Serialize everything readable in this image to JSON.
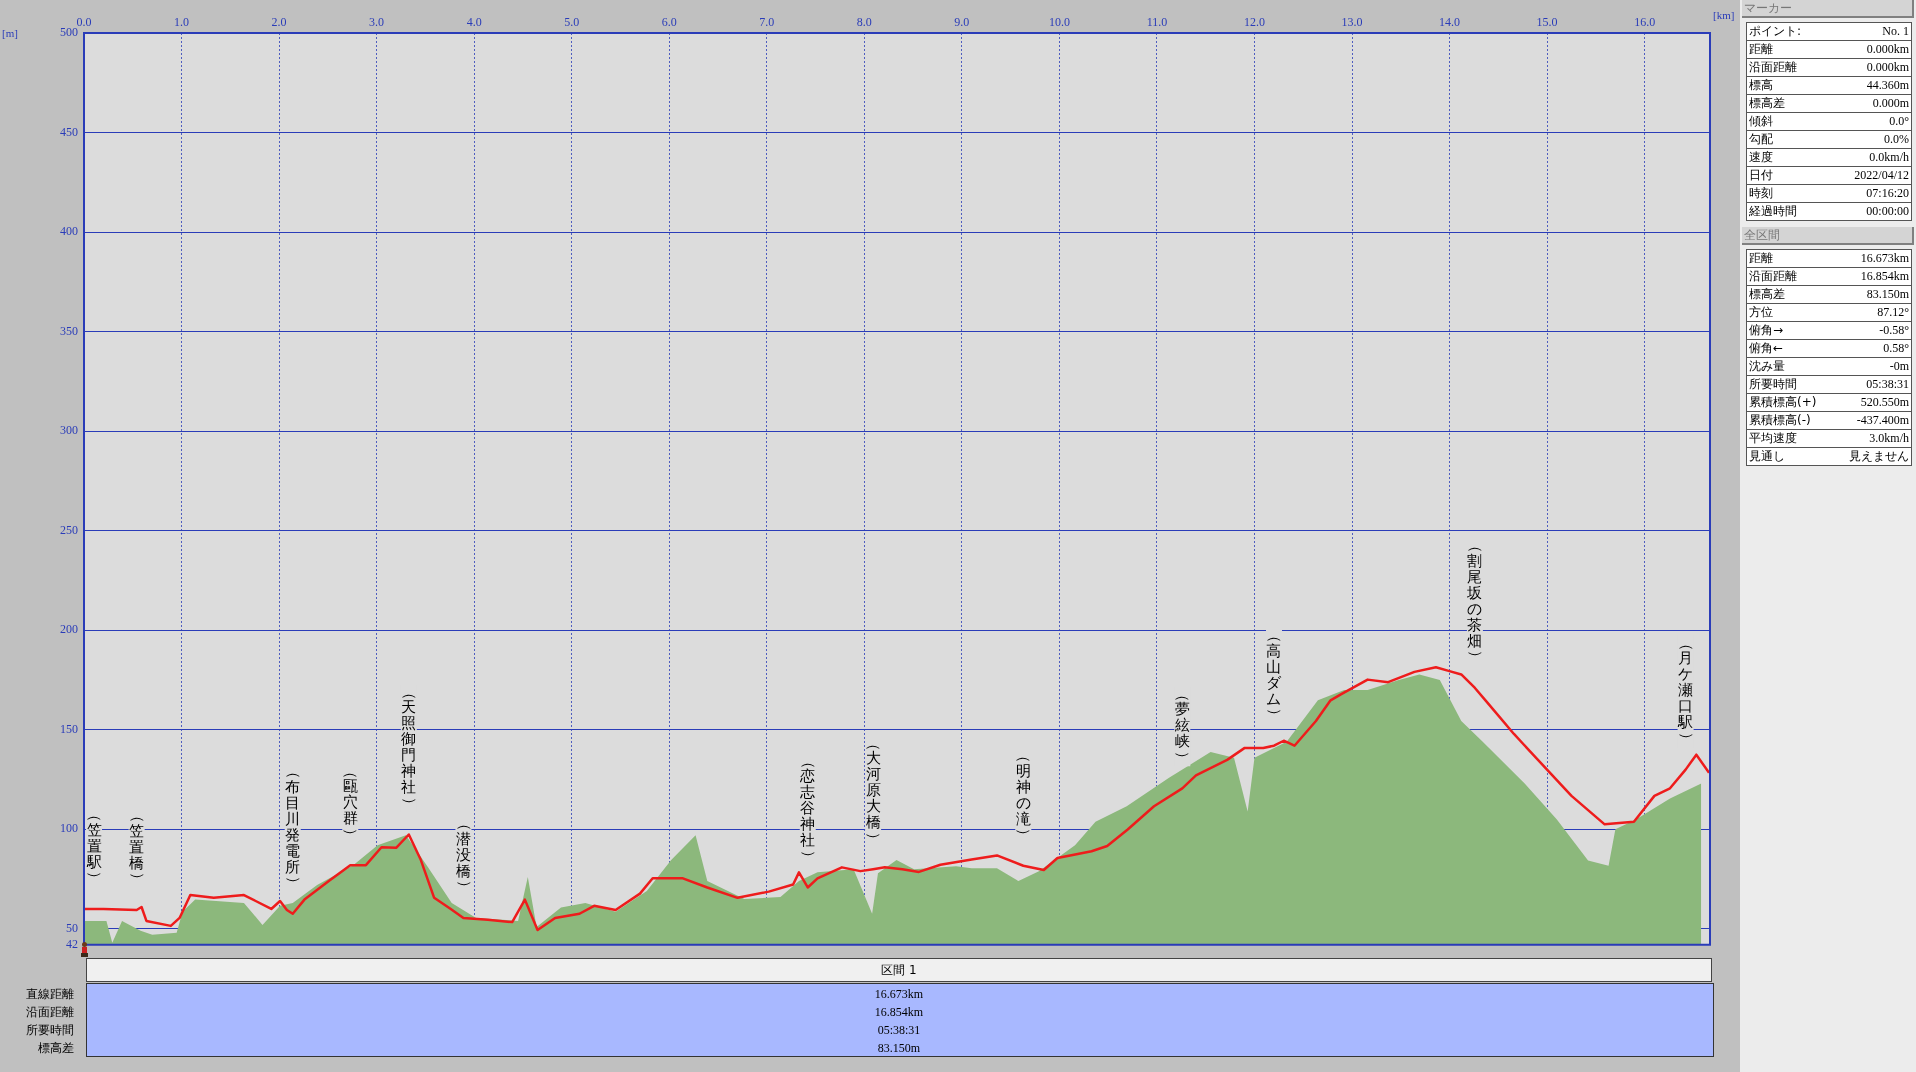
{
  "chart_data": [
    {
      "type": "line",
      "xlabel": "[km]",
      "ylabel": "[m]",
      "xlim": [
        0,
        16.67
      ],
      "xticks": [
        {
          "value": 0,
          "label": "0.0"
        },
        {
          "value": 1,
          "label": "1.0"
        },
        {
          "value": 2,
          "label": "2.0"
        },
        {
          "value": 3,
          "label": "3.0"
        },
        {
          "value": 4,
          "label": "4.0"
        },
        {
          "value": 5,
          "label": "5.0"
        },
        {
          "value": 6,
          "label": "6.0"
        },
        {
          "value": 7,
          "label": "7.0"
        },
        {
          "value": 8,
          "label": "8.0"
        },
        {
          "value": 9,
          "label": "9.0"
        },
        {
          "value": 10,
          "label": "10.0"
        },
        {
          "value": 11,
          "label": "11.0"
        },
        {
          "value": 12,
          "label": "12.0"
        },
        {
          "value": 13,
          "label": "13.0"
        },
        {
          "value": 14,
          "label": "14.0"
        },
        {
          "value": 15,
          "label": "15.0"
        },
        {
          "value": 16,
          "label": "16.0"
        }
      ],
      "ylim": [
        42,
        500
      ],
      "yticks": [
        42,
        50,
        100,
        150,
        200,
        250,
        300,
        350,
        400,
        450,
        500
      ],
      "grid": true,
      "marker": "none",
      "series": [
        {
          "type": "area",
          "color": "#8cb87c",
          "x": [
            0,
            0.23,
            0.29,
            0.39,
            0.58,
            0.7,
            0.95,
            1.01,
            1.14,
            1.64,
            1.83,
            2.01,
            2.14,
            2.39,
            2.76,
            3.01,
            3.3,
            3.52,
            3.77,
            4.02,
            4.45,
            4.55,
            4.64,
            4.89,
            5.14,
            5.45,
            5.77,
            6.02,
            6.27,
            6.39,
            6.77,
            7.14,
            7.33,
            7.52,
            7.89,
            8.08,
            8.14,
            8.33,
            8.51,
            8.94,
            9.1,
            9.36,
            9.58,
            9.79,
            10.16,
            10.37,
            10.69,
            11.12,
            11.55,
            11.79,
            11.93,
            12.0,
            12.33,
            12.65,
            12.92,
            13.16,
            13.48,
            13.69,
            13.9,
            14.12,
            14.34,
            14.77,
            15.1,
            15.42,
            15.63,
            15.7,
            15.91,
            16.26,
            16.58
          ],
          "values": [
            54,
            54,
            43,
            54,
            49,
            47,
            48,
            58.6,
            64.7,
            63,
            52,
            61.6,
            63,
            72,
            82,
            92,
            97,
            81.5,
            63,
            55.5,
            54,
            76,
            51,
            60.7,
            63,
            58.6,
            69,
            84.6,
            97,
            74,
            65,
            66,
            74,
            78.4,
            80,
            57.6,
            78,
            84.6,
            80,
            81.5,
            80.4,
            80.4,
            74,
            79,
            92,
            103.8,
            111.6,
            125.8,
            138.8,
            136,
            109,
            136,
            144,
            164.8,
            170,
            170,
            175,
            177.8,
            175,
            154.4,
            144,
            123,
            104.9,
            84.3,
            81.7,
            100,
            105,
            115.5,
            123
          ]
        },
        {
          "type": "line",
          "color": "#ee1c1c",
          "x": [
            0,
            0.2,
            0.54,
            0.59,
            0.64,
            0.89,
            0.98,
            1.09,
            1.33,
            1.64,
            1.76,
            1.92,
            2.01,
            2.08,
            2.14,
            2.26,
            2.51,
            2.73,
            2.89,
            3.05,
            3.2,
            3.33,
            3.45,
            3.59,
            3.76,
            3.89,
            4.14,
            4.39,
            4.52,
            4.65,
            4.83,
            5.08,
            5.23,
            5.45,
            5.7,
            5.83,
            6.14,
            6.39,
            6.7,
            7.02,
            7.27,
            7.33,
            7.42,
            7.52,
            7.77,
            7.96,
            8.09,
            8.21,
            8.39,
            8.56,
            8.78,
            9.1,
            9.36,
            9.63,
            9.84,
            9.98,
            10.33,
            10.49,
            10.7,
            10.97,
            11.26,
            11.4,
            11.72,
            11.9,
            12.09,
            12.2,
            12.3,
            12.41,
            12.63,
            12.78,
            12.89,
            13.16,
            13.37,
            13.64,
            13.86,
            13.99,
            14.12,
            14.26,
            14.39,
            14.66,
            14.98,
            15.25,
            15.59,
            15.89,
            16.1,
            16.26,
            16.42,
            16.53,
            16.66
          ],
          "values": [
            60,
            60,
            59.5,
            61,
            54,
            51.5,
            55.5,
            67,
            65.6,
            67,
            64,
            60,
            64,
            59.5,
            57.6,
            64.7,
            74,
            82,
            82,
            91,
            90.7,
            97.4,
            85,
            65.6,
            60,
            55.5,
            54.6,
            53.4,
            64.7,
            49.4,
            55.5,
            57.6,
            61.6,
            59.5,
            67.7,
            75.4,
            75.4,
            70.8,
            65.6,
            68.7,
            72.3,
            78.4,
            70.8,
            75.4,
            80.9,
            79,
            80,
            80.9,
            80,
            78.6,
            82.2,
            84.8,
            86.9,
            81.7,
            79.6,
            85.6,
            89,
            91.6,
            99.9,
            111.6,
            120.6,
            127.1,
            134.9,
            140.9,
            140.9,
            142,
            144.5,
            142,
            154.4,
            164.8,
            167.9,
            175.2,
            173.9,
            179.1,
            181.4,
            179.6,
            177.8,
            171,
            163.5,
            147.9,
            131,
            116.8,
            102.5,
            103.8,
            116.8,
            120.6,
            130,
            137.5,
            128.4
          ]
        }
      ],
      "annotations": [
        {
          "text": "（笠置駅）",
          "x": 0,
          "y": 60
        },
        {
          "text": "（笠置橋）",
          "x": 0.54,
          "y": 59.5
        },
        {
          "text": "（布目川発電所）",
          "x": 2.14,
          "y": 57.6
        },
        {
          "text": "（甌穴群）",
          "x": 2.73,
          "y": 82
        },
        {
          "text": "（天照御門神社）",
          "x": 3.33,
          "y": 97.4
        },
        {
          "text": "（潜没橋）",
          "x": 3.89,
          "y": 55.5
        },
        {
          "text": "（恋志谷神社）",
          "x": 7.42,
          "y": 70.8
        },
        {
          "text": "（大河原大橋）",
          "x": 8.09,
          "y": 80
        },
        {
          "text": "（明神の滝）",
          "x": 9.63,
          "y": 81.7
        },
        {
          "text": "（夢絃峡）",
          "x": 11.26,
          "y": 120.6
        },
        {
          "text": "（高山ダム）",
          "x": 12.2,
          "y": 142
        },
        {
          "text": "（割尾坂の茶畑）",
          "x": 14.26,
          "y": 171
        },
        {
          "text": "（月ケ瀬口駅）",
          "x": 16.42,
          "y": 130
        }
      ]
    },
    {
      "type": "other",
      "title": "マーカー",
      "annotations": [
        "ポイント:",
        "No. 1",
        "距離",
        "0.000km",
        "沿面距離",
        "0.000km",
        "標高",
        "44.360m",
        "標高差",
        "0.000m",
        "傾斜",
        "0.0°",
        "勾配",
        "0.0%",
        "速度",
        "0.0km/h",
        "日付",
        "2022/04/12",
        "時刻",
        "07:16:20",
        "経過時間",
        "00:00:00"
      ]
    },
    {
      "type": "other",
      "title": "全区間",
      "annotations": [
        "距離",
        "16.673km",
        "沿面距離",
        "16.854km",
        "標高差",
        "83.150m",
        "方位",
        "87.12°",
        "俯角→",
        "-0.58°",
        "俯角←",
        "0.58°",
        "沈み量",
        "-0m",
        "所要時間",
        "05:38:31",
        "累積標高(+)",
        "520.550m",
        "累積標高(-)",
        "-437.400m",
        "平均速度",
        "3.0km/h",
        "見通し",
        "見えません"
      ]
    },
    {
      "type": "other",
      "title": "区間 1",
      "annotations": [
        "直線距離",
        "16.673km",
        "沿面距離",
        "16.854km",
        "所要時間",
        "05:38:31",
        "標高差",
        "83.150m"
      ]
    }
  ]
}
